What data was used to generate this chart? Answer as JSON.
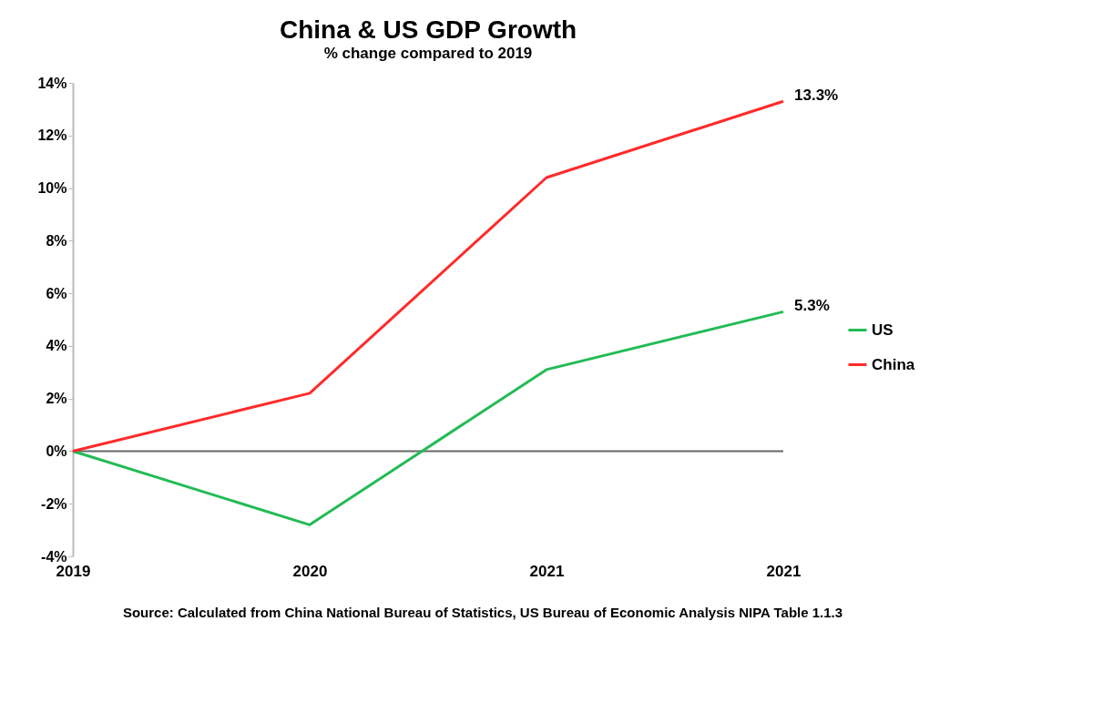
{
  "chart_data": {
    "type": "line",
    "title": "China & US GDP Growth",
    "subtitle": "% change compared to 2019",
    "categories": [
      "2019",
      "2020",
      "2021",
      "2021"
    ],
    "series": [
      {
        "name": "US",
        "color": "#22bb55",
        "values": [
          0,
          -2.8,
          3.1,
          5.3
        ],
        "value_labels": [
          null,
          null,
          null,
          "5.3%"
        ]
      },
      {
        "name": "China",
        "color": "#ff2a2a",
        "values": [
          0,
          2.2,
          10.4,
          13.3
        ],
        "value_labels": [
          null,
          null,
          null,
          "13.3%"
        ]
      }
    ],
    "ylim": [
      -4,
      14
    ],
    "yticks": [
      {
        "value": -4,
        "label": "-4%"
      },
      {
        "value": -2,
        "label": "-2%"
      },
      {
        "value": 0,
        "label": "0%"
      },
      {
        "value": 2,
        "label": "2%"
      },
      {
        "value": 4,
        "label": "4%"
      },
      {
        "value": 6,
        "label": "6%"
      },
      {
        "value": 8,
        "label": "8%"
      },
      {
        "value": 10,
        "label": "10%"
      },
      {
        "value": 12,
        "label": "12%"
      },
      {
        "value": 14,
        "label": "14%"
      }
    ],
    "ref_lines": [
      {
        "axis": "y",
        "value": 0,
        "color": "#666666"
      }
    ],
    "grid": false,
    "legend": "right",
    "marker": "none",
    "line_style": "solid",
    "annotations": [
      "Source: Calculated from China National Bureau of Statistics, US Bureau of Economic Analysis NIPA Table 1.1.3"
    ]
  }
}
